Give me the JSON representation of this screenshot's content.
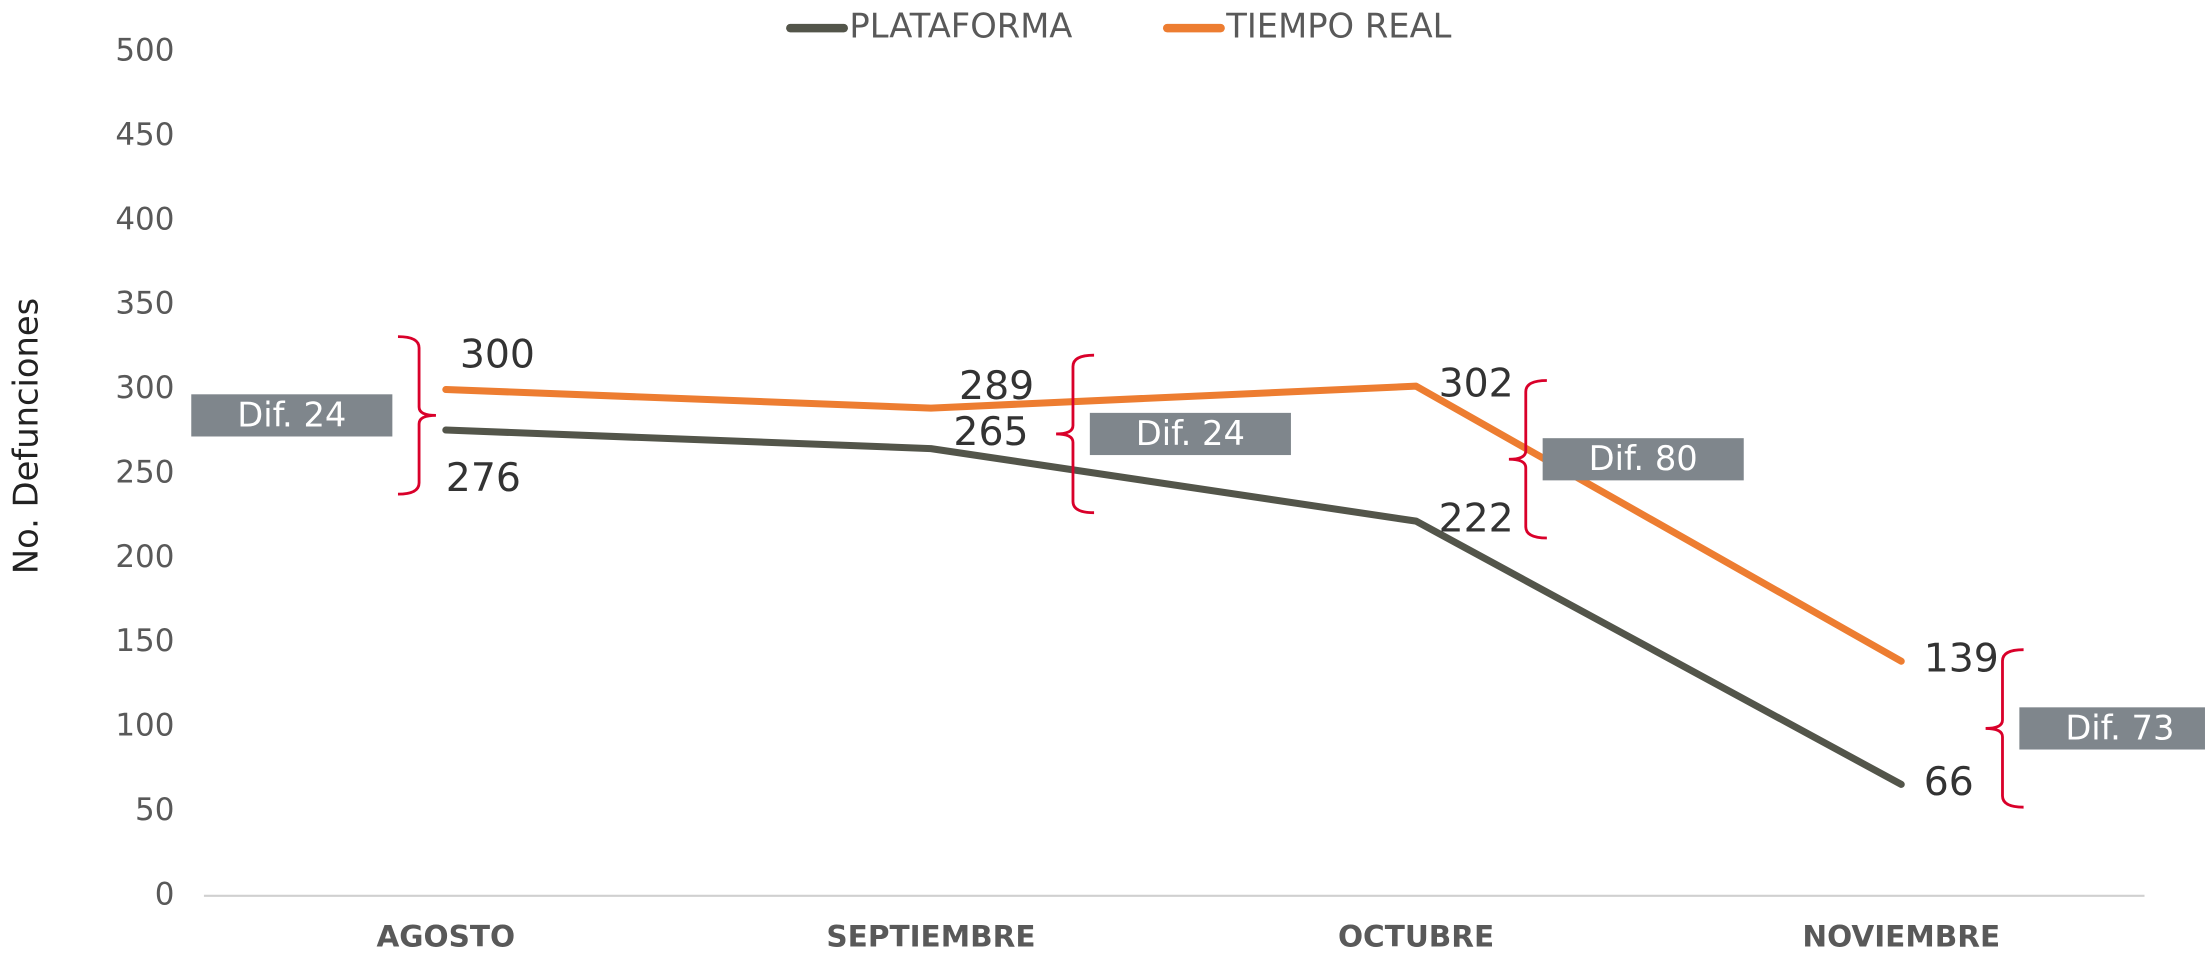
{
  "chart_data": {
    "type": "line",
    "y_label": "No. Defunciones",
    "categories": [
      "AGOSTO",
      "SEPTIEMBRE",
      "OCTUBRE",
      "NOVIEMBRE"
    ],
    "series": [
      {
        "name": "PLATAFORMA",
        "color": "#53554a",
        "values": [
          276,
          265,
          222,
          66
        ]
      },
      {
        "name": "TIEMPO REAL",
        "color": "#ed7d31",
        "values": [
          300,
          289,
          302,
          139
        ]
      }
    ],
    "annotations": [
      "Dif. 24",
      "Dif. 24",
      "Dif. 80",
      "Dif. 73"
    ],
    "annotation_color": "#7f868c",
    "brace_color": "#d9002a",
    "ylim": [
      0,
      500
    ],
    "yticks": [
      0,
      50,
      100,
      150,
      200,
      250,
      300,
      350,
      400,
      450,
      500
    ],
    "grid": false,
    "legend": "top"
  }
}
